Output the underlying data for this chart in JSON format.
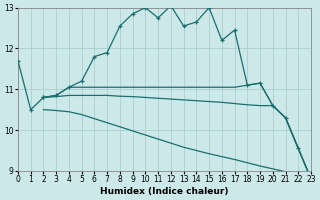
{
  "xlabel": "Humidex (Indice chaleur)",
  "xlim": [
    0,
    23
  ],
  "ylim": [
    9,
    13
  ],
  "yticks": [
    9,
    10,
    11,
    12,
    13
  ],
  "xticks": [
    0,
    1,
    2,
    3,
    4,
    5,
    6,
    7,
    8,
    9,
    10,
    11,
    12,
    13,
    14,
    15,
    16,
    17,
    18,
    19,
    20,
    21,
    22,
    23
  ],
  "bg_color": "#cce8e8",
  "grid_color": "#aacfcf",
  "line_color": "#1a6e6e",
  "line1": [
    [
      0,
      11.7
    ],
    [
      1,
      10.5
    ],
    [
      2,
      10.8
    ],
    [
      3,
      10.85
    ],
    [
      4,
      11.05
    ],
    [
      5,
      11.2
    ],
    [
      6,
      11.8
    ],
    [
      7,
      11.9
    ],
    [
      8,
      12.55
    ],
    [
      9,
      12.85
    ],
    [
      10,
      13.0
    ],
    [
      11,
      12.75
    ],
    [
      12,
      13.05
    ],
    [
      13,
      12.55
    ],
    [
      14,
      12.65
    ],
    [
      15,
      13.0
    ],
    [
      16,
      12.2
    ],
    [
      17,
      12.45
    ],
    [
      18,
      11.1
    ],
    [
      19,
      11.15
    ],
    [
      20,
      10.6
    ],
    [
      21,
      10.3
    ],
    [
      22,
      9.55
    ],
    [
      23,
      8.8
    ]
  ],
  "line2": [
    [
      2,
      10.8
    ],
    [
      3,
      10.85
    ],
    [
      4,
      11.05
    ],
    [
      5,
      11.05
    ],
    [
      6,
      11.05
    ],
    [
      7,
      11.05
    ],
    [
      8,
      11.05
    ],
    [
      9,
      11.05
    ],
    [
      10,
      11.05
    ],
    [
      11,
      11.05
    ],
    [
      12,
      11.05
    ],
    [
      13,
      11.05
    ],
    [
      14,
      11.05
    ],
    [
      15,
      11.05
    ],
    [
      16,
      11.05
    ],
    [
      17,
      11.05
    ],
    [
      18,
      11.1
    ],
    [
      19,
      11.15
    ],
    [
      20,
      10.6
    ],
    [
      21,
      10.3
    ],
    [
      22,
      9.55
    ],
    [
      23,
      8.8
    ]
  ],
  "line3": [
    [
      2,
      10.8
    ],
    [
      3,
      10.82
    ],
    [
      4,
      10.85
    ],
    [
      5,
      10.85
    ],
    [
      6,
      10.85
    ],
    [
      7,
      10.85
    ],
    [
      8,
      10.83
    ],
    [
      9,
      10.82
    ],
    [
      10,
      10.8
    ],
    [
      11,
      10.78
    ],
    [
      12,
      10.76
    ],
    [
      13,
      10.74
    ],
    [
      14,
      10.72
    ],
    [
      15,
      10.7
    ],
    [
      16,
      10.68
    ],
    [
      17,
      10.65
    ],
    [
      18,
      10.62
    ],
    [
      19,
      10.6
    ],
    [
      20,
      10.6
    ],
    [
      21,
      10.3
    ],
    [
      22,
      9.55
    ],
    [
      23,
      8.8
    ]
  ],
  "line4": [
    [
      2,
      10.5
    ],
    [
      3,
      10.48
    ],
    [
      4,
      10.45
    ],
    [
      5,
      10.38
    ],
    [
      6,
      10.28
    ],
    [
      7,
      10.18
    ],
    [
      8,
      10.08
    ],
    [
      9,
      9.98
    ],
    [
      10,
      9.88
    ],
    [
      11,
      9.78
    ],
    [
      12,
      9.68
    ],
    [
      13,
      9.58
    ],
    [
      14,
      9.5
    ],
    [
      15,
      9.42
    ],
    [
      16,
      9.35
    ],
    [
      17,
      9.28
    ],
    [
      18,
      9.2
    ],
    [
      19,
      9.12
    ],
    [
      20,
      9.05
    ],
    [
      21,
      8.98
    ],
    [
      22,
      8.88
    ],
    [
      23,
      8.8
    ]
  ]
}
